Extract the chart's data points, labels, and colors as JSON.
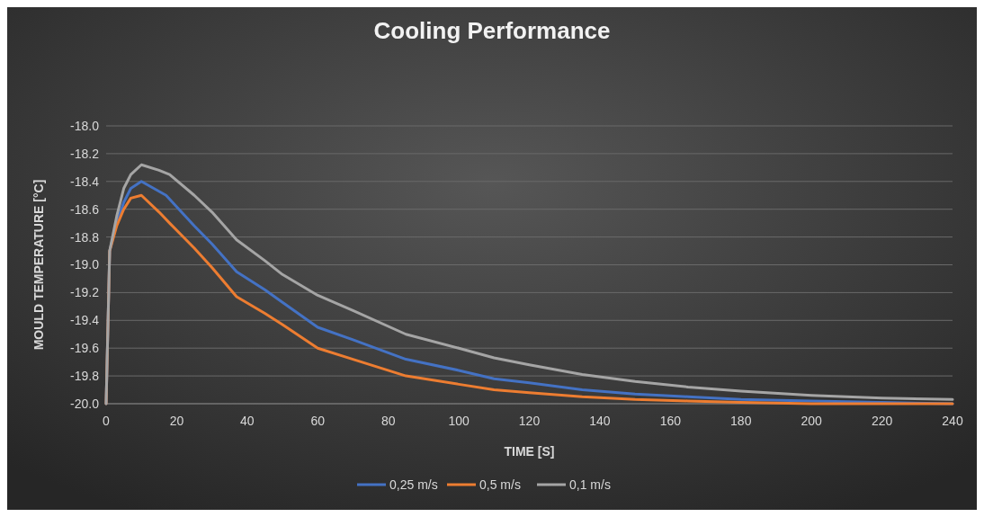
{
  "chart_data": {
    "type": "line",
    "title": "Cooling Performance",
    "xlabel": "TIME [S]",
    "ylabel": "MOULD TEMPERATURE [°C]",
    "xlim": [
      0,
      240
    ],
    "xticks": [
      0,
      20,
      40,
      60,
      80,
      100,
      120,
      140,
      160,
      180,
      200,
      220,
      240
    ],
    "ylim": [
      -20.0,
      -18.0
    ],
    "yticks": [
      {
        "value": -20,
        "label": "-20.0"
      },
      {
        "value": -19.8,
        "label": "-19.8"
      },
      {
        "value": -19.6,
        "label": "-19.6"
      },
      {
        "value": -19.4,
        "label": "-19.4"
      },
      {
        "value": -19.2,
        "label": "-19.2"
      },
      {
        "value": -19,
        "label": "-19.0"
      },
      {
        "value": -18.8,
        "label": "-18.8"
      },
      {
        "value": -18.6,
        "label": "-18.6"
      },
      {
        "value": -18.4,
        "label": "-18.4"
      },
      {
        "value": -18.2,
        "label": "-18.2"
      },
      {
        "value": -18,
        "label": "-18.0"
      }
    ],
    "grid": "y",
    "legend": "bottom",
    "line_style": "solid",
    "series": [
      {
        "name": "0,25 m/s",
        "color": "#4472c4",
        "x": [
          0,
          1,
          3,
          5,
          7,
          10,
          17,
          25,
          30,
          37,
          45,
          50,
          60,
          70,
          85,
          100,
          110,
          120,
          135,
          150,
          165,
          180,
          200,
          220,
          240
        ],
        "values": [
          -20,
          -18.9,
          -18.7,
          -18.55,
          -18.45,
          -18.4,
          -18.5,
          -18.72,
          -18.85,
          -19.05,
          -19.18,
          -19.27,
          -19.45,
          -19.54,
          -19.68,
          -19.76,
          -19.82,
          -19.85,
          -19.9,
          -19.93,
          -19.95,
          -19.97,
          -19.98,
          -19.99,
          -20
        ]
      },
      {
        "name": "0,5 m/s",
        "color": "#ed7d31",
        "x": [
          0,
          1,
          3,
          5,
          7,
          10,
          15,
          18,
          25,
          30,
          37,
          45,
          50,
          60,
          70,
          85,
          100,
          110,
          120,
          135,
          150,
          165,
          180,
          200,
          240
        ],
        "values": [
          -20,
          -18.9,
          -18.72,
          -18.6,
          -18.52,
          -18.5,
          -18.62,
          -18.7,
          -18.88,
          -19.02,
          -19.23,
          -19.35,
          -19.43,
          -19.6,
          -19.68,
          -19.8,
          -19.86,
          -19.9,
          -19.92,
          -19.95,
          -19.97,
          -19.98,
          -19.99,
          -20,
          -20
        ]
      },
      {
        "name": "0,1 m/s",
        "color": "#a5a5a5",
        "x": [
          0,
          1,
          3,
          5,
          7,
          10,
          15,
          18,
          25,
          30,
          37,
          45,
          50,
          60,
          70,
          85,
          100,
          110,
          120,
          135,
          150,
          165,
          180,
          200,
          220,
          240
        ],
        "values": [
          -20,
          -18.9,
          -18.65,
          -18.45,
          -18.35,
          -18.28,
          -18.32,
          -18.35,
          -18.5,
          -18.62,
          -18.82,
          -18.97,
          -19.07,
          -19.22,
          -19.33,
          -19.5,
          -19.6,
          -19.67,
          -19.72,
          -19.79,
          -19.84,
          -19.88,
          -19.91,
          -19.94,
          -19.96,
          -19.97
        ]
      }
    ]
  }
}
